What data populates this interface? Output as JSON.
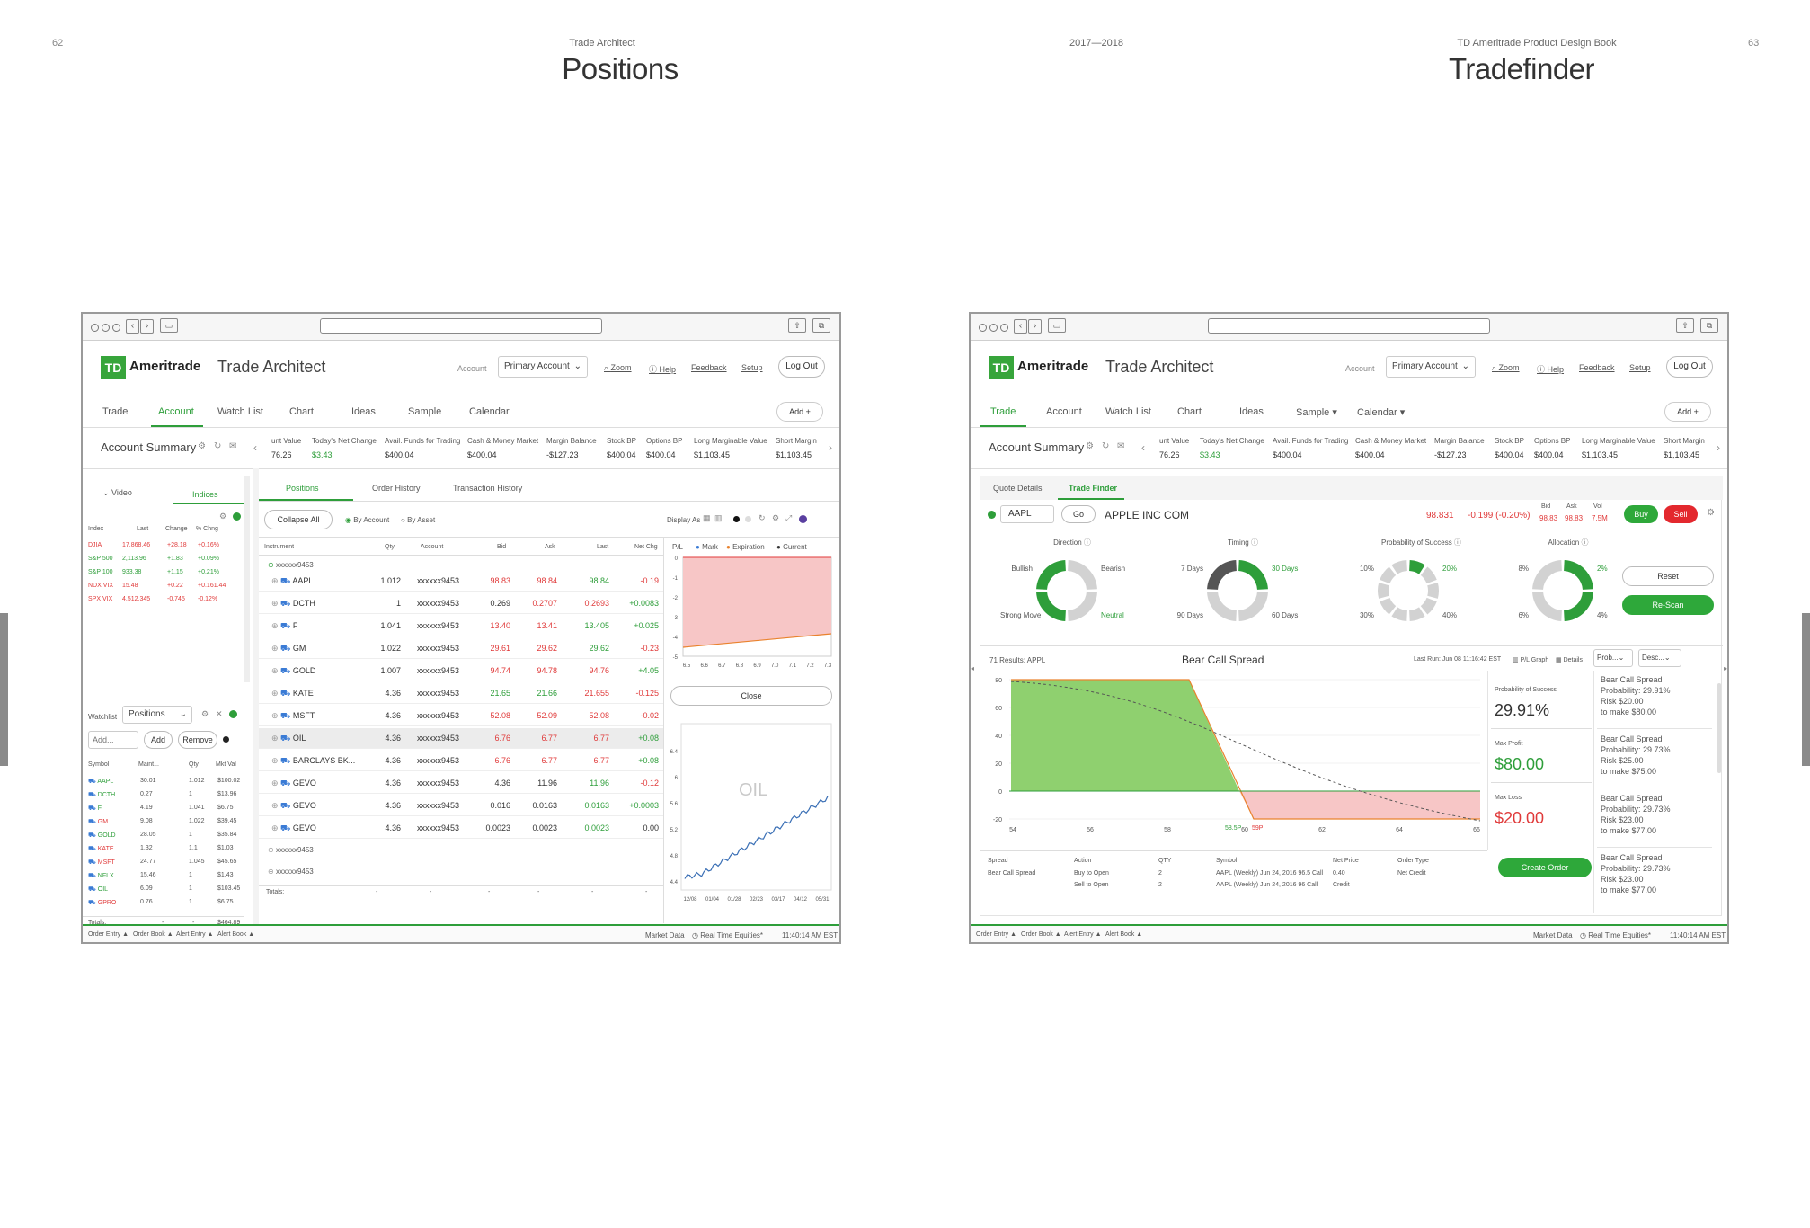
{
  "book": {
    "left_page_number": "62",
    "right_page_number": "63",
    "left_caption": "Trade Architect",
    "center_caption": "2017—2018",
    "right_caption": "TD Ameritrade Product Design Book",
    "left_title": "Positions",
    "right_title": "Tradefinder"
  },
  "left_app": {
    "logo": "TD",
    "brand": "Ameritrade",
    "app_title": "Trade Architect",
    "account_label": "Account",
    "account_select": "Primary Account",
    "links": [
      "Zoom",
      "Help",
      "Feedback",
      "Setup"
    ],
    "logout": "Log Out",
    "nav": [
      "Trade",
      "Account",
      "Watch List",
      "Chart",
      "Ideas",
      "Sample",
      "Calendar"
    ],
    "add": "Add",
    "account_summary": "Account Summary",
    "metrics": [
      {
        "label": "unt Value",
        "value": "76.26",
        "color": "#333"
      },
      {
        "label": "Today's Net Change",
        "value": "$3.43",
        "color": "#2e9e3a"
      },
      {
        "label": "Avail. Funds for Trading",
        "value": "$400.04",
        "color": "#333"
      },
      {
        "label": "Cash & Money Market",
        "value": "$400.04",
        "color": "#333"
      },
      {
        "label": "Margin Balance",
        "value": "-$127.23",
        "color": "#333"
      },
      {
        "label": "Stock BP",
        "value": "$400.04",
        "color": "#333"
      },
      {
        "label": "Options BP",
        "value": "$400.04",
        "color": "#333"
      },
      {
        "label": "Long Marginable Value",
        "value": "$1,103.45",
        "color": "#333"
      },
      {
        "label": "Short Margin",
        "value": "$1,103.45",
        "color": "#333"
      }
    ],
    "left_tabs": {
      "video": "Video",
      "indices": "Indices"
    },
    "indices_headers": [
      "Index",
      "Last",
      "Change",
      "% Chng"
    ],
    "indices": [
      {
        "name": "DJIA",
        "last": "17,868.46",
        "change": "+28.18",
        "pct": "+0.16%",
        "color": "red"
      },
      {
        "name": "S&P 500",
        "last": "2,113.96",
        "change": "+1.83",
        "pct": "+0.09%",
        "color": "green"
      },
      {
        "name": "S&P 100",
        "last": "933.38",
        "change": "+1.15",
        "pct": "+0.21%",
        "color": "green"
      },
      {
        "name": "NDX VIX",
        "last": "15.48",
        "change": "+0.22",
        "pct": "+0.161.44",
        "color": "red"
      },
      {
        "name": "SPX VIX",
        "last": "4,512.345",
        "change": "-0.745",
        "pct": "-0.12%",
        "color": "red"
      }
    ],
    "watchlist_label": "Watchlist",
    "watchlist_select": "Positions",
    "watch_add_placeholder": "Add...",
    "watch_add_btn": "Add",
    "watch_remove_btn": "Remove",
    "watch_headers": [
      "Symbol",
      "Maint...",
      "Qty",
      "Mkt Val"
    ],
    "watch_rows": [
      {
        "sym": "AAPL",
        "maint": "30.01",
        "qty": "1.012",
        "val": "$100.02",
        "color": "green"
      },
      {
        "sym": "DCTH",
        "maint": "0.27",
        "qty": "1",
        "val": "$13.96",
        "color": "green"
      },
      {
        "sym": "F",
        "maint": "4.19",
        "qty": "1.041",
        "val": "$6.75",
        "color": "green"
      },
      {
        "sym": "GM",
        "maint": "9.08",
        "qty": "1.022",
        "val": "$39.45",
        "color": "red"
      },
      {
        "sym": "GOLD",
        "maint": "28.05",
        "qty": "1",
        "val": "$35.84",
        "color": "green"
      },
      {
        "sym": "KATE",
        "maint": "1.32",
        "qty": "1.1",
        "val": "$1.03",
        "color": "red"
      },
      {
        "sym": "MSFT",
        "maint": "24.77",
        "qty": "1.045",
        "val": "$45.65",
        "color": "red"
      },
      {
        "sym": "NFLX",
        "maint": "15.46",
        "qty": "1",
        "val": "$1.43",
        "color": "green"
      },
      {
        "sym": "OIL",
        "maint": "6.09",
        "qty": "1",
        "val": "$103.45",
        "color": "green"
      },
      {
        "sym": "GPRO",
        "maint": "0.76",
        "qty": "1",
        "val": "$6.75",
        "color": "red"
      }
    ],
    "watch_totals_label": "Totals:",
    "watch_totals_cells": [
      "-",
      "-"
    ],
    "watch_totals_value": "$464.89",
    "pos_tabs": [
      "Positions",
      "Order History",
      "Transaction History"
    ],
    "collapse_all": "Collapse All",
    "by_account": "By Account",
    "by_asset": "By Asset",
    "display_as": "Display As",
    "pos_headers": [
      "Instrument",
      "Qty",
      "Account",
      "Bid",
      "Ask",
      "Last",
      "Net Chg"
    ],
    "group1": "xxxxxx9453",
    "positions": [
      {
        "sym": "AAPL",
        "qty": "1.012",
        "acct": "xxxxxx9453",
        "bid": "98.83",
        "ask": "98.84",
        "last": "98.84",
        "chg": "-0.19",
        "bidc": "red",
        "askc": "red",
        "lastc": "green",
        "chgc": "red",
        "hl": false
      },
      {
        "sym": "DCTH",
        "qty": "1",
        "acct": "xxxxxx9453",
        "bid": "0.269",
        "ask": "0.2707",
        "last": "0.2693",
        "chg": "+0.0083",
        "bidc": "dark",
        "askc": "red",
        "lastc": "red",
        "chgc": "green",
        "hl": false
      },
      {
        "sym": "F",
        "qty": "1.041",
        "acct": "xxxxxx9453",
        "bid": "13.40",
        "ask": "13.41",
        "last": "13.405",
        "chg": "+0.025",
        "bidc": "red",
        "askc": "red",
        "lastc": "green",
        "chgc": "green",
        "hl": false
      },
      {
        "sym": "GM",
        "qty": "1.022",
        "acct": "xxxxxx9453",
        "bid": "29.61",
        "ask": "29.62",
        "last": "29.62",
        "chg": "-0.23",
        "bidc": "red",
        "askc": "red",
        "lastc": "green",
        "chgc": "red",
        "hl": false
      },
      {
        "sym": "GOLD",
        "qty": "1.007",
        "acct": "xxxxxx9453",
        "bid": "94.74",
        "ask": "94.78",
        "last": "94.76",
        "chg": "+4.05",
        "bidc": "red",
        "askc": "red",
        "lastc": "red",
        "chgc": "green",
        "hl": false
      },
      {
        "sym": "KATE",
        "qty": "4.36",
        "acct": "xxxxxx9453",
        "bid": "21.65",
        "ask": "21.66",
        "last": "21.655",
        "chg": "-0.125",
        "bidc": "green",
        "askc": "green",
        "lastc": "red",
        "chgc": "red",
        "hl": false
      },
      {
        "sym": "MSFT",
        "qty": "4.36",
        "acct": "xxxxxx9453",
        "bid": "52.08",
        "ask": "52.09",
        "last": "52.08",
        "chg": "-0.02",
        "bidc": "red",
        "askc": "red",
        "lastc": "red",
        "chgc": "red",
        "hl": false
      },
      {
        "sym": "OIL",
        "qty": "4.36",
        "acct": "xxxxxx9453",
        "bid": "6.76",
        "ask": "6.77",
        "last": "6.77",
        "chg": "+0.08",
        "bidc": "red",
        "askc": "red",
        "lastc": "red",
        "chgc": "green",
        "hl": true
      },
      {
        "sym": "BARCLAYS BK...",
        "qty": "4.36",
        "acct": "xxxxxx9453",
        "bid": "6.76",
        "ask": "6.77",
        "last": "6.77",
        "chg": "+0.08",
        "bidc": "red",
        "askc": "red",
        "lastc": "red",
        "chgc": "green",
        "hl": false
      },
      {
        "sym": "GEVO",
        "qty": "4.36",
        "acct": "xxxxxx9453",
        "bid": "4.36",
        "ask": "11.96",
        "last": "11.96",
        "chg": "-0.12",
        "bidc": "dark",
        "askc": "dark",
        "lastc": "green",
        "chgc": "red",
        "hl": false
      },
      {
        "sym": "GEVO",
        "qty": "4.36",
        "acct": "xxxxxx9453",
        "bid": "0.016",
        "ask": "0.0163",
        "last": "0.0163",
        "chg": "+0.0003",
        "bidc": "dark",
        "askc": "dark",
        "lastc": "green",
        "chgc": "green",
        "hl": false
      },
      {
        "sym": "GEVO",
        "qty": "4.36",
        "acct": "xxxxxx9453",
        "bid": "0.0023",
        "ask": "0.0023",
        "last": "0.0023",
        "chg": "0.00",
        "bidc": "dark",
        "askc": "dark",
        "lastc": "green",
        "chgc": "dark",
        "hl": false
      }
    ],
    "group2": "xxxxxx9453",
    "group3": "xxxxxx9453",
    "totals_label": "Totals:",
    "totals_cells": [
      "-",
      "-",
      "-",
      "-",
      "-",
      "-"
    ],
    "pl_label": "P/L",
    "legend": [
      "Mark",
      "Expiration",
      "Current"
    ],
    "pl_yticks": [
      "0",
      "-1",
      "-2",
      "-3",
      "-4",
      "-5"
    ],
    "pl_xticks": [
      "6.5",
      "6.6",
      "6.7",
      "6.8",
      "6.9",
      "7.0",
      "7.1",
      "7.2",
      "7.3"
    ],
    "close_btn": "Close",
    "oil_label": "OIL",
    "oil_yticks": [
      "6.4",
      "6",
      "5.6",
      "5.2",
      "4.8",
      "4.4"
    ],
    "oil_xticks": [
      "12/08",
      "01/04",
      "01/28",
      "02/23",
      "03/17",
      "04/12",
      "05/31"
    ],
    "footer_items": [
      "Order Entry ▲",
      "Order Book ▲",
      "Alert Entry ▲",
      "Alert Book ▲"
    ],
    "footer_right": [
      "Market Data",
      "Real Time Equities*",
      "11:40:14 AM EST"
    ]
  },
  "right_app": {
    "sub_tabs": [
      "Quote Details",
      "Trade Finder"
    ],
    "symbol": "AAPL",
    "go": "Go",
    "company": "APPLE INC COM",
    "price": "98.831",
    "change": "-0.199 (-0.20%)",
    "bid_label": "Bid",
    "bid": "98.83",
    "ask_label": "Ask",
    "ask": "98.83",
    "vol_label": "Vol",
    "vol": "7.5M",
    "buy": "Buy",
    "sell": "Sell",
    "nav": [
      "Trade",
      "Account",
      "Watch List",
      "Chart",
      "Ideas",
      "Sample ▾",
      "Calendar ▾"
    ],
    "direction": {
      "title": "Direction",
      "labels": [
        "Bullish",
        "Bearish",
        "Strong Move",
        "Neutral"
      ]
    },
    "timing": {
      "title": "Timing",
      "labels": [
        "7 Days",
        "30 Days",
        "90 Days",
        "60 Days"
      ]
    },
    "probability": {
      "title": "Probability of Success",
      "labels": [
        "10%",
        "20%",
        "30%",
        "40%"
      ]
    },
    "allocation": {
      "title": "Allocation",
      "labels": [
        "8%",
        "2%",
        "6%",
        "4%"
      ]
    },
    "reset": "Reset",
    "rescan": "Re-Scan",
    "results": "71 Results: APPL",
    "strategy_title": "Bear Call Spread",
    "last_run": "Last Run: Jun 08 11:16:42 EST",
    "pl_graph": "P/L Graph",
    "details": "Details",
    "sort1": "Prob...",
    "sort2": "Desc...",
    "yticks": [
      "80",
      "60",
      "40",
      "20",
      "0",
      "-20"
    ],
    "xticks": [
      "54",
      "56",
      "58",
      "60",
      "62",
      "64",
      "66"
    ],
    "strike_a": "58.5P",
    "strike_b": "59P",
    "prob_label": "Probability of Success",
    "prob_value": "29.91%",
    "maxprofit_label": "Max Profit",
    "maxprofit_value": "$80.00",
    "maxloss_label": "Max Loss",
    "maxloss_value": "$20.00",
    "create_order": "Create Order",
    "order_headers": [
      "Spread",
      "Action",
      "QTY",
      "Symbol",
      "Net Price",
      "Order Type"
    ],
    "order_rows": [
      [
        "Bear Call Spread",
        "Buy to Open",
        "2",
        "AAPL (Weekly) Jun 24, 2016 96.5 Call",
        "0.40",
        "Net Credit"
      ],
      [
        "",
        "Sell to Open",
        "2",
        "AAPL (Weekly) Jun 24, 2016 96 Call",
        "Credit",
        ""
      ]
    ],
    "cards": [
      {
        "title": "Bear Call Spread",
        "prob": "Probability: 29.91%",
        "risk": "Risk $20.00",
        "make": "to make $80.00"
      },
      {
        "title": "Bear Call Spread",
        "prob": "Probability: 29.73%",
        "risk": "Risk $25.00",
        "make": "to make $75.00"
      },
      {
        "title": "Bear Call Spread",
        "prob": "Probability: 29.73%",
        "risk": "Risk $23.00",
        "make": "to make $77.00"
      },
      {
        "title": "Bear Call Spread",
        "prob": "Probability: 29.73%",
        "risk": "Risk $23.00",
        "make": "to make $77.00"
      }
    ]
  },
  "colors": {
    "green": "#2e9e3a",
    "red": "#e03a3a",
    "pink": "#f7c6c6",
    "lightgreen": "#8fd06f"
  }
}
